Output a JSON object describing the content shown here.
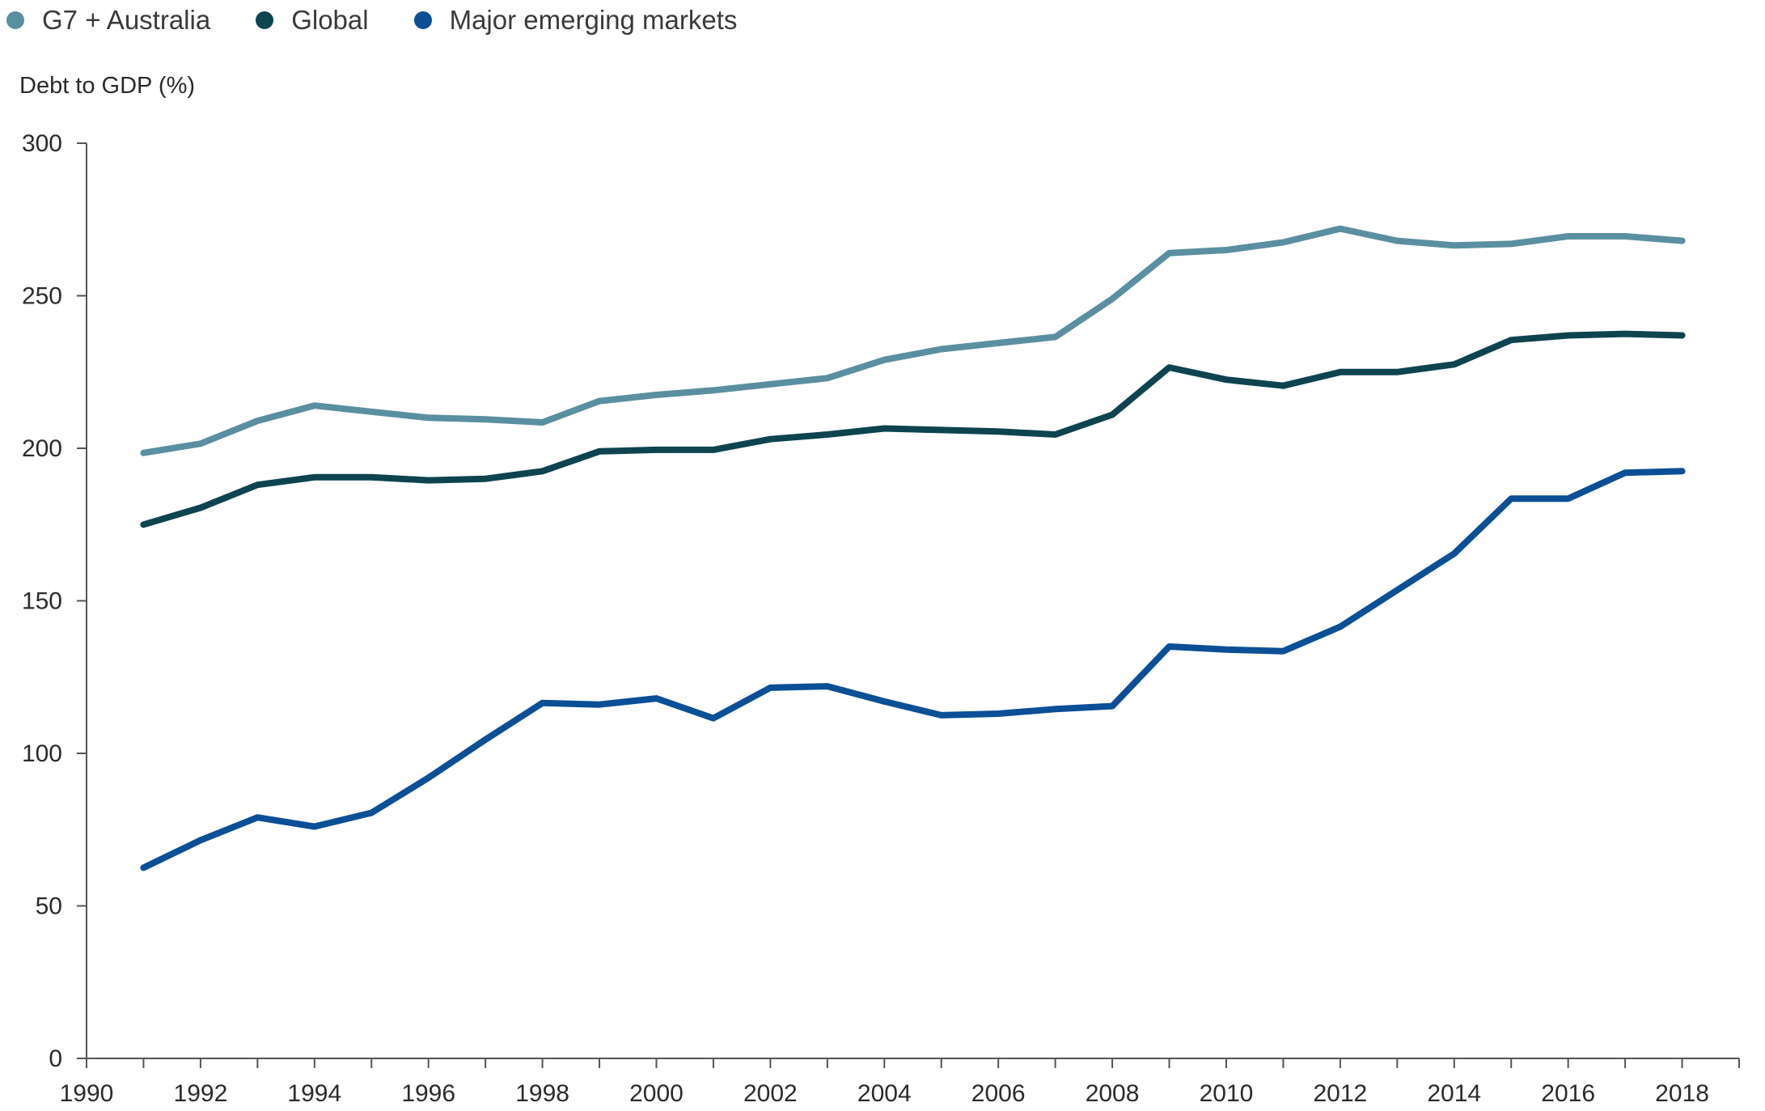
{
  "chart_data": {
    "type": "line",
    "title": "",
    "ylabel": "Debt to GDP (%)",
    "xlabel": "",
    "ylim": [
      0,
      300
    ],
    "xlim": [
      1990,
      2019
    ],
    "yticks": [
      0,
      50,
      100,
      150,
      200,
      250,
      300
    ],
    "xtick_labels": [
      1990,
      1992,
      1994,
      1996,
      1998,
      2000,
      2002,
      2004,
      2006,
      2008,
      2010,
      2012,
      2014,
      2016,
      2018
    ],
    "legend_position": "top-left",
    "x": [
      1991,
      1992,
      1993,
      1994,
      1995,
      1996,
      1997,
      1998,
      1999,
      2000,
      2001,
      2002,
      2003,
      2004,
      2005,
      2006,
      2007,
      2008,
      2009,
      2010,
      2011,
      2012,
      2013,
      2014,
      2015,
      2016,
      2017,
      2018
    ],
    "series": [
      {
        "name": "G7 + Australia",
        "color": "#5a8fa1",
        "values": [
          198.5,
          201.5,
          209,
          214,
          212,
          210,
          209.5,
          208.5,
          215.5,
          217.5,
          219,
          221,
          223,
          229,
          232.5,
          234.5,
          236.5,
          249,
          264,
          265,
          267.5,
          272,
          268,
          266.5,
          267,
          269.5,
          269.5,
          268
        ]
      },
      {
        "name": "Global",
        "color": "#0d4450",
        "values": [
          175,
          180.5,
          188,
          190.5,
          190.5,
          189.5,
          190,
          192.5,
          199,
          199.5,
          199.5,
          203,
          204.5,
          206.5,
          206,
          205.5,
          204.5,
          211,
          226.5,
          222.5,
          220.5,
          225,
          225,
          227.5,
          235.5,
          237,
          237.5,
          237
        ]
      },
      {
        "name": "Major emerging markets",
        "color": "#0b4f96",
        "values": [
          62.5,
          71.5,
          79,
          76,
          80.5,
          92,
          104.5,
          116.5,
          116,
          118,
          111.5,
          121.5,
          122,
          117,
          112.5,
          113,
          114.5,
          115.5,
          135,
          134,
          133.5,
          141.5,
          153.5,
          165.5,
          183.5,
          183.5,
          192,
          192.5
        ]
      }
    ]
  }
}
